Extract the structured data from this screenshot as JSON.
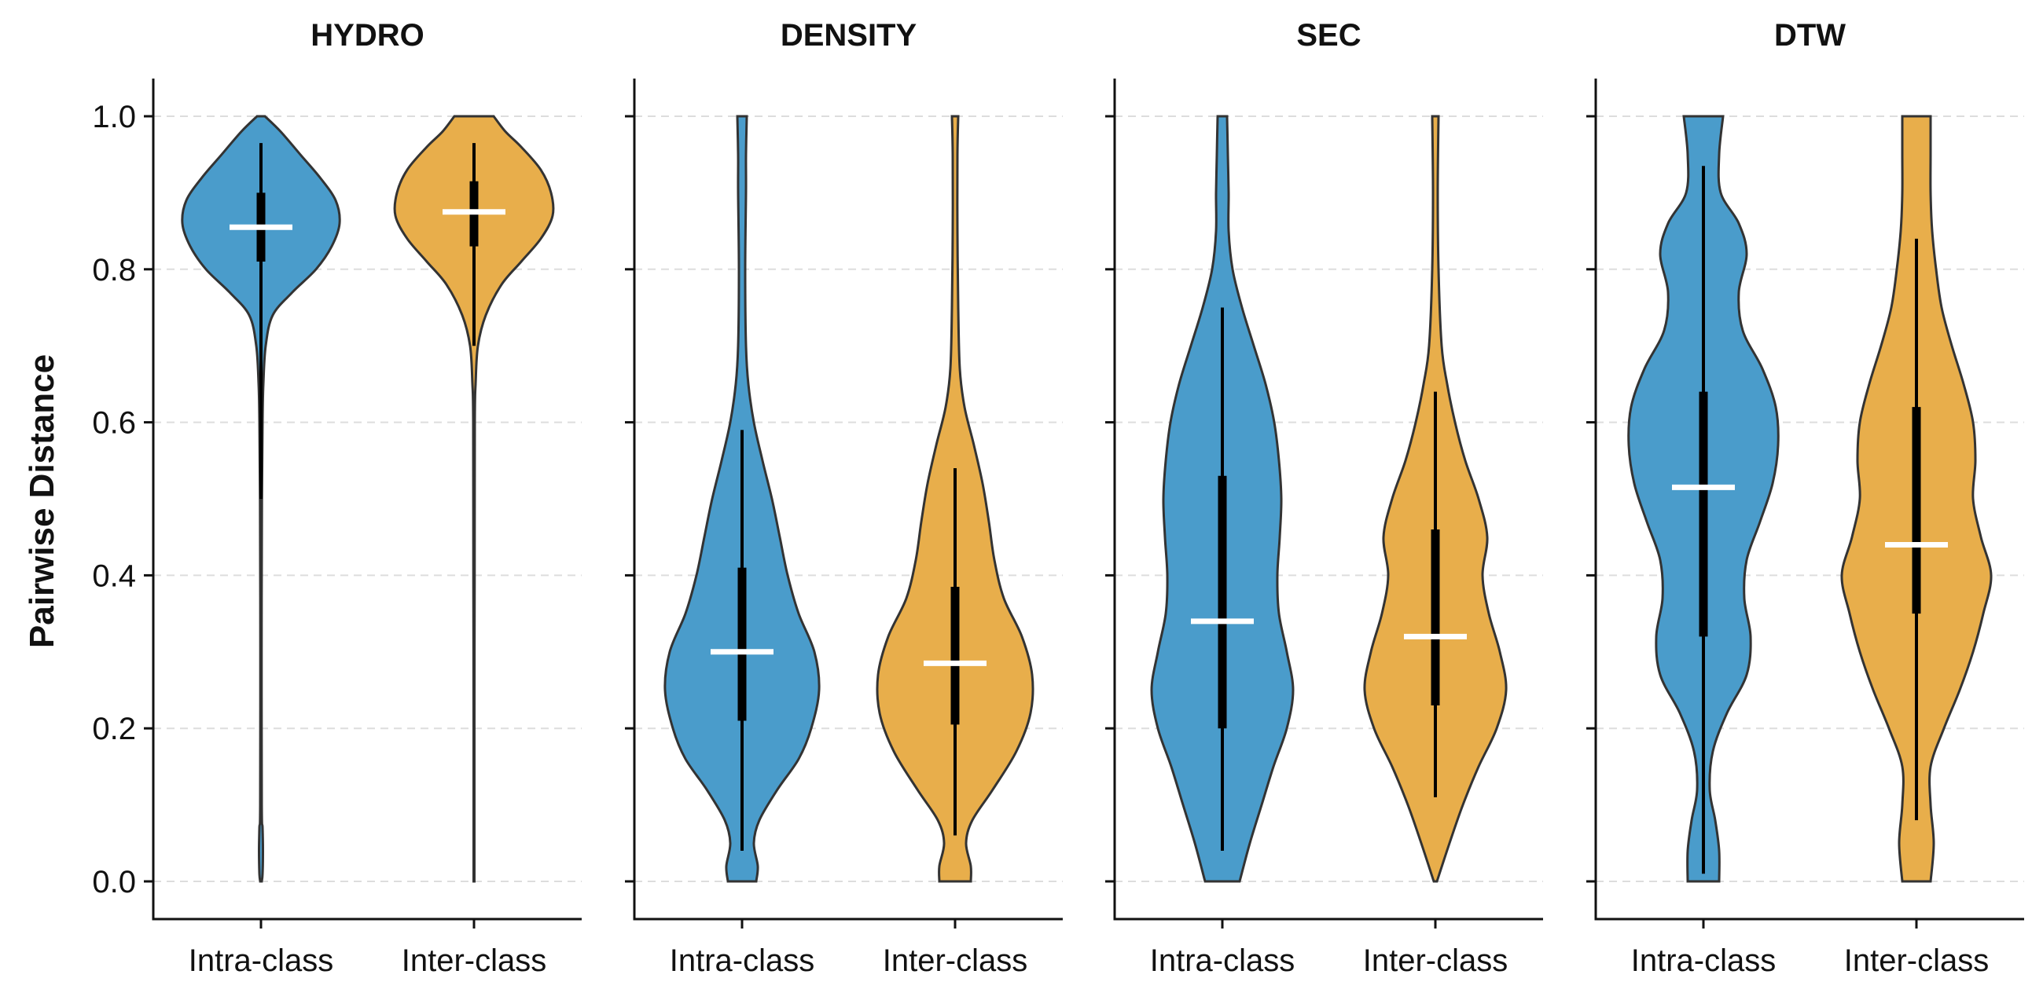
{
  "chart_data": {
    "type": "violin",
    "ylabel": "Pairwise Distance",
    "ylim": [
      0,
      1
    ],
    "yticks": [
      0.0,
      0.2,
      0.4,
      0.6,
      0.8,
      1.0
    ],
    "ytick_labels": [
      "0.0",
      "0.2",
      "0.4",
      "0.6",
      "0.8",
      "1.0"
    ],
    "grid": "horizontal dashed",
    "categories": [
      "Intra-class",
      "Inter-class"
    ],
    "colors": {
      "Intra-class": "#4a9ccb",
      "Inter-class": "#e8ae4b"
    },
    "panels": [
      {
        "title": "HYDRO",
        "violins": [
          {
            "category": "Intra-class",
            "color": "#4a9ccb",
            "median": 0.855,
            "q1": 0.81,
            "q3": 0.9,
            "whisker_low": 0.5,
            "whisker_high": 0.965,
            "density": [
              [
                0.0,
                0.01
              ],
              [
                0.01,
                0.02
              ],
              [
                0.04,
                0.025
              ],
              [
                0.07,
                0.02
              ],
              [
                0.1,
                0.01
              ],
              [
                0.3,
                0.008
              ],
              [
                0.5,
                0.012
              ],
              [
                0.6,
                0.02
              ],
              [
                0.65,
                0.03
              ],
              [
                0.7,
                0.06
              ],
              [
                0.74,
                0.15
              ],
              [
                0.77,
                0.4
              ],
              [
                0.8,
                0.7
              ],
              [
                0.83,
                0.9
              ],
              [
                0.86,
                1.0
              ],
              [
                0.89,
                0.95
              ],
              [
                0.92,
                0.75
              ],
              [
                0.95,
                0.5
              ],
              [
                0.98,
                0.25
              ],
              [
                1.0,
                0.05
              ]
            ]
          },
          {
            "category": "Inter-class",
            "color": "#e8ae4b",
            "median": 0.875,
            "q1": 0.83,
            "q3": 0.915,
            "whisker_low": 0.7,
            "whisker_high": 0.965,
            "density": [
              [
                0.0,
                0.005
              ],
              [
                0.2,
                0.005
              ],
              [
                0.4,
                0.008
              ],
              [
                0.6,
                0.01
              ],
              [
                0.65,
                0.02
              ],
              [
                0.7,
                0.05
              ],
              [
                0.74,
                0.15
              ],
              [
                0.78,
                0.35
              ],
              [
                0.81,
                0.6
              ],
              [
                0.84,
                0.85
              ],
              [
                0.87,
                1.0
              ],
              [
                0.9,
                0.98
              ],
              [
                0.93,
                0.85
              ],
              [
                0.96,
                0.6
              ],
              [
                0.98,
                0.4
              ],
              [
                1.0,
                0.25
              ]
            ]
          }
        ]
      },
      {
        "title": "DENSITY",
        "violins": [
          {
            "category": "Intra-class",
            "color": "#4a9ccb",
            "median": 0.3,
            "q1": 0.21,
            "q3": 0.41,
            "whisker_low": 0.04,
            "whisker_high": 0.59,
            "density": [
              [
                0.0,
                0.18
              ],
              [
                0.02,
                0.2
              ],
              [
                0.05,
                0.15
              ],
              [
                0.08,
                0.22
              ],
              [
                0.12,
                0.45
              ],
              [
                0.16,
                0.72
              ],
              [
                0.2,
                0.88
              ],
              [
                0.25,
                0.98
              ],
              [
                0.3,
                0.92
              ],
              [
                0.35,
                0.72
              ],
              [
                0.4,
                0.58
              ],
              [
                0.45,
                0.48
              ],
              [
                0.5,
                0.38
              ],
              [
                0.55,
                0.26
              ],
              [
                0.6,
                0.15
              ],
              [
                0.65,
                0.08
              ],
              [
                0.7,
                0.05
              ],
              [
                0.8,
                0.04
              ],
              [
                0.9,
                0.05
              ],
              [
                0.95,
                0.05
              ],
              [
                1.0,
                0.06
              ]
            ]
          },
          {
            "category": "Inter-class",
            "color": "#e8ae4b",
            "median": 0.285,
            "q1": 0.205,
            "q3": 0.385,
            "whisker_low": 0.06,
            "whisker_high": 0.54,
            "density": [
              [
                0.0,
                0.2
              ],
              [
                0.02,
                0.2
              ],
              [
                0.05,
                0.14
              ],
              [
                0.08,
                0.22
              ],
              [
                0.12,
                0.48
              ],
              [
                0.17,
                0.78
              ],
              [
                0.22,
                0.96
              ],
              [
                0.27,
                0.98
              ],
              [
                0.32,
                0.85
              ],
              [
                0.37,
                0.62
              ],
              [
                0.42,
                0.5
              ],
              [
                0.47,
                0.43
              ],
              [
                0.52,
                0.35
              ],
              [
                0.57,
                0.24
              ],
              [
                0.62,
                0.12
              ],
              [
                0.67,
                0.06
              ],
              [
                0.75,
                0.04
              ],
              [
                0.85,
                0.03
              ],
              [
                0.95,
                0.03
              ],
              [
                1.0,
                0.04
              ]
            ]
          }
        ]
      },
      {
        "title": "SEC",
        "violins": [
          {
            "category": "Intra-class",
            "color": "#4a9ccb",
            "median": 0.34,
            "q1": 0.2,
            "q3": 0.53,
            "whisker_low": 0.04,
            "whisker_high": 0.75,
            "density": [
              [
                0.0,
                0.22
              ],
              [
                0.05,
                0.35
              ],
              [
                0.1,
                0.5
              ],
              [
                0.15,
                0.65
              ],
              [
                0.2,
                0.82
              ],
              [
                0.25,
                0.9
              ],
              [
                0.3,
                0.82
              ],
              [
                0.35,
                0.72
              ],
              [
                0.4,
                0.7
              ],
              [
                0.45,
                0.73
              ],
              [
                0.5,
                0.75
              ],
              [
                0.55,
                0.72
              ],
              [
                0.6,
                0.66
              ],
              [
                0.65,
                0.55
              ],
              [
                0.7,
                0.4
              ],
              [
                0.75,
                0.25
              ],
              [
                0.8,
                0.13
              ],
              [
                0.85,
                0.08
              ],
              [
                0.9,
                0.08
              ],
              [
                0.95,
                0.07
              ],
              [
                1.0,
                0.06
              ]
            ]
          },
          {
            "category": "Inter-class",
            "color": "#e8ae4b",
            "median": 0.32,
            "q1": 0.23,
            "q3": 0.46,
            "whisker_low": 0.11,
            "whisker_high": 0.64,
            "density": [
              [
                0.0,
                0.02
              ],
              [
                0.05,
                0.18
              ],
              [
                0.1,
                0.35
              ],
              [
                0.15,
                0.55
              ],
              [
                0.2,
                0.78
              ],
              [
                0.25,
                0.9
              ],
              [
                0.3,
                0.82
              ],
              [
                0.35,
                0.68
              ],
              [
                0.4,
                0.6
              ],
              [
                0.45,
                0.66
              ],
              [
                0.5,
                0.55
              ],
              [
                0.55,
                0.38
              ],
              [
                0.6,
                0.25
              ],
              [
                0.65,
                0.15
              ],
              [
                0.7,
                0.08
              ],
              [
                0.8,
                0.04
              ],
              [
                0.9,
                0.03
              ],
              [
                1.0,
                0.04
              ]
            ]
          }
        ]
      },
      {
        "title": "DTW",
        "violins": [
          {
            "category": "Intra-class",
            "color": "#4a9ccb",
            "median": 0.515,
            "q1": 0.32,
            "q3": 0.64,
            "whisker_low": 0.01,
            "whisker_high": 0.935,
            "density": [
              [
                0.0,
                0.2
              ],
              [
                0.04,
                0.2
              ],
              [
                0.08,
                0.15
              ],
              [
                0.12,
                0.08
              ],
              [
                0.17,
                0.12
              ],
              [
                0.22,
                0.3
              ],
              [
                0.27,
                0.55
              ],
              [
                0.32,
                0.6
              ],
              [
                0.37,
                0.52
              ],
              [
                0.42,
                0.55
              ],
              [
                0.47,
                0.72
              ],
              [
                0.52,
                0.88
              ],
              [
                0.57,
                0.95
              ],
              [
                0.62,
                0.92
              ],
              [
                0.67,
                0.75
              ],
              [
                0.72,
                0.5
              ],
              [
                0.77,
                0.45
              ],
              [
                0.82,
                0.55
              ],
              [
                0.86,
                0.45
              ],
              [
                0.9,
                0.22
              ],
              [
                0.95,
                0.2
              ],
              [
                1.0,
                0.25
              ]
            ]
          },
          {
            "category": "Inter-class",
            "color": "#e8ae4b",
            "median": 0.44,
            "q1": 0.35,
            "q3": 0.62,
            "whisker_low": 0.08,
            "whisker_high": 0.84,
            "density": [
              [
                0.0,
                0.18
              ],
              [
                0.05,
                0.22
              ],
              [
                0.1,
                0.18
              ],
              [
                0.15,
                0.18
              ],
              [
                0.2,
                0.35
              ],
              [
                0.25,
                0.55
              ],
              [
                0.3,
                0.72
              ],
              [
                0.35,
                0.85
              ],
              [
                0.4,
                0.95
              ],
              [
                0.45,
                0.82
              ],
              [
                0.5,
                0.72
              ],
              [
                0.55,
                0.75
              ],
              [
                0.6,
                0.72
              ],
              [
                0.65,
                0.6
              ],
              [
                0.7,
                0.45
              ],
              [
                0.75,
                0.32
              ],
              [
                0.8,
                0.25
              ],
              [
                0.85,
                0.2
              ],
              [
                0.9,
                0.18
              ],
              [
                0.95,
                0.18
              ],
              [
                1.0,
                0.18
              ]
            ]
          }
        ]
      }
    ]
  }
}
